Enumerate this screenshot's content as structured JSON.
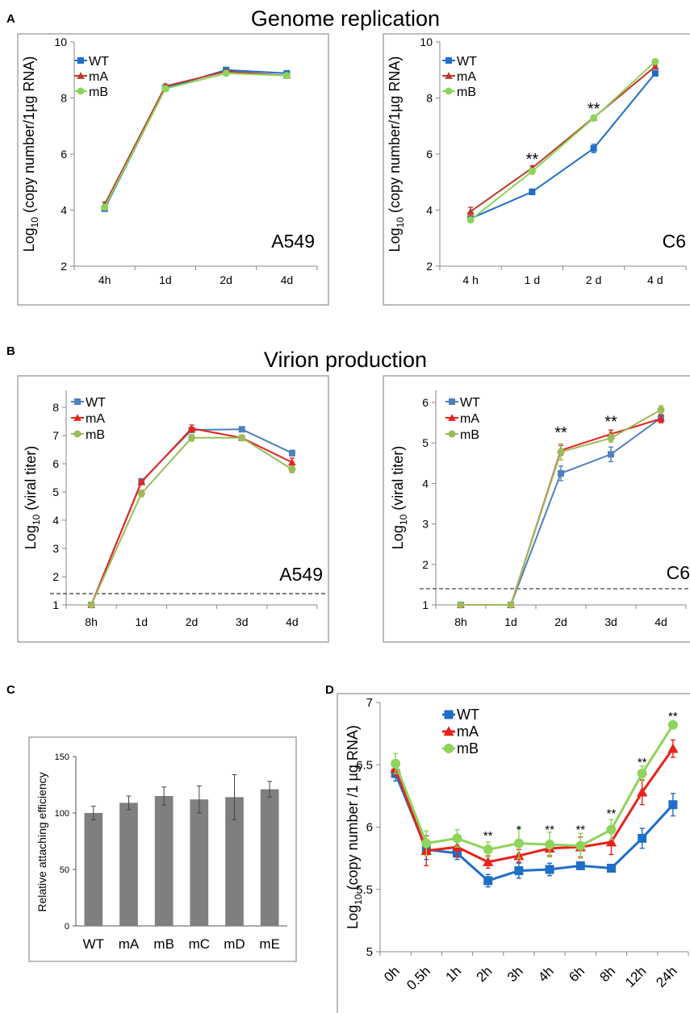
{
  "figure": {
    "panel_letters": [
      "A",
      "B",
      "C",
      "D"
    ],
    "section_titles": [
      "Genome replication",
      "Virion production"
    ]
  },
  "colors": {
    "WT": "#1f6ec8",
    "WT_B": "#4f81bd",
    "mA": "#e8221c",
    "mA_A": "#c0392b",
    "mB": "#8ed45a",
    "mB_B": "#9bbb59",
    "bar": "#7f7f7f",
    "frame": "#a6a6a6"
  },
  "chart_data": [
    {
      "id": "A1",
      "panel": "A",
      "type": "line",
      "ylabel_html": "Log<tspan baseline-shift='sub' font-size='13'>10</tspan> (copy number/1µg RNA)",
      "ylabel": "Log10 (copy number/1µg RNA)",
      "categories": [
        "4h",
        "1d",
        "2d",
        "4d"
      ],
      "ylim": [
        2,
        10
      ],
      "yticks": [
        2,
        4,
        6,
        8,
        10
      ],
      "annotation": "A549",
      "legend": [
        "WT",
        "mA",
        "mB"
      ],
      "series": [
        {
          "name": "WT",
          "marker": "square",
          "values": [
            4.05,
            8.35,
            9.0,
            8.88
          ],
          "err": [
            0.08,
            0.08,
            0.05,
            0.05
          ]
        },
        {
          "name": "mA",
          "marker": "triangle",
          "values": [
            4.2,
            8.42,
            8.95,
            8.8
          ],
          "err": [
            0.08,
            0.08,
            0.05,
            0.05
          ]
        },
        {
          "name": "mB",
          "marker": "circle",
          "values": [
            4.1,
            8.33,
            8.88,
            8.8
          ],
          "err": [
            0.08,
            0.08,
            0.05,
            0.05
          ]
        }
      ],
      "stars": []
    },
    {
      "id": "A2",
      "panel": "A",
      "type": "line",
      "ylabel": "Log10 (copy number/1µg RNA)",
      "categories": [
        "4 h",
        "1 d",
        "2 d",
        "4 d"
      ],
      "ylim": [
        2,
        10
      ],
      "yticks": [
        2,
        4,
        6,
        8,
        10
      ],
      "annotation": "C6",
      "legend": [
        "WT",
        "mA",
        "mB"
      ],
      "series": [
        {
          "name": "WT",
          "marker": "square",
          "values": [
            3.7,
            4.65,
            6.2,
            8.88
          ],
          "err": [
            0.1,
            0.1,
            0.15,
            0.08
          ]
        },
        {
          "name": "mA",
          "marker": "triangle",
          "values": [
            3.95,
            5.5,
            7.3,
            9.12
          ],
          "err": [
            0.15,
            0.08,
            0.05,
            0.05
          ]
        },
        {
          "name": "mB",
          "marker": "circle",
          "values": [
            3.65,
            5.38,
            7.28,
            9.3
          ],
          "err": [
            0.08,
            0.08,
            0.05,
            0.05
          ]
        }
      ],
      "stars": [
        {
          "category": "1 d",
          "text": "**",
          "y": 5.85
        },
        {
          "category": "2 d",
          "text": "**",
          "y": 7.65
        }
      ]
    },
    {
      "id": "B1",
      "panel": "B",
      "type": "line",
      "ylabel": "Log10 (viral titer)",
      "categories": [
        "8h",
        "1d",
        "2d",
        "3d",
        "4d"
      ],
      "ylim": [
        1,
        8.6
      ],
      "yticks": [
        1,
        2,
        3,
        4,
        5,
        6,
        7,
        8
      ],
      "annotation": "A549",
      "dashed_line": 1.4,
      "legend": [
        "WT",
        "mA",
        "mB"
      ],
      "series": [
        {
          "name": "WT",
          "marker": "square",
          "values": [
            1.0,
            5.38,
            7.2,
            7.22,
            6.38
          ],
          "err": [
            0,
            0.08,
            0.08,
            0.06,
            0.1
          ]
        },
        {
          "name": "mA",
          "marker": "triangle",
          "values": [
            1.0,
            5.35,
            7.25,
            6.92,
            6.05
          ],
          "err": [
            0,
            0.08,
            0.12,
            0.1,
            0.15
          ]
        },
        {
          "name": "mB",
          "marker": "circle",
          "values": [
            1.0,
            4.95,
            6.92,
            6.92,
            5.8
          ],
          "err": [
            0,
            0.12,
            0.12,
            0.1,
            0.12
          ]
        }
      ],
      "stars": []
    },
    {
      "id": "B2",
      "panel": "B",
      "type": "line",
      "ylabel": "Log10 (viral titer)",
      "categories": [
        "8h",
        "1d",
        "2d",
        "3d",
        "4d"
      ],
      "ylim": [
        1,
        6.3
      ],
      "yticks": [
        1,
        2,
        3,
        4,
        5,
        6
      ],
      "annotation": "C6",
      "dashed_line": 1.4,
      "legend": [
        "WT",
        "mA",
        "mB"
      ],
      "series": [
        {
          "name": "WT",
          "marker": "square",
          "values": [
            1.0,
            1.0,
            4.25,
            4.72,
            5.62
          ],
          "err": [
            0,
            0,
            0.18,
            0.18,
            0.1
          ]
        },
        {
          "name": "mA",
          "marker": "triangle",
          "values": [
            1.0,
            1.0,
            4.82,
            5.22,
            5.6
          ],
          "err": [
            0,
            0,
            0.12,
            0.1,
            0.1
          ]
        },
        {
          "name": "mB",
          "marker": "circle",
          "values": [
            1.0,
            1.0,
            4.78,
            5.12,
            5.82
          ],
          "err": [
            0,
            0,
            0.2,
            0.1,
            0.1
          ]
        }
      ],
      "stars": [
        {
          "category": "2d",
          "text": "**",
          "y": 5.28
        },
        {
          "category": "3d",
          "text": "**",
          "y": 5.55
        }
      ]
    },
    {
      "id": "C",
      "panel": "C",
      "type": "bar",
      "ylabel": "Relative attaching efficiency",
      "categories": [
        "WT",
        "mA",
        "mB",
        "mC",
        "mD",
        "mE"
      ],
      "values": [
        100,
        109,
        115,
        112,
        114,
        121
      ],
      "err": [
        6,
        6,
        8,
        12,
        20,
        7
      ],
      "ylim": [
        0,
        150
      ],
      "yticks": [
        0,
        50,
        100,
        150
      ]
    },
    {
      "id": "D",
      "panel": "D",
      "type": "line",
      "ylabel": "Log10 (copy number /1 µg RNA)",
      "categories": [
        "0h",
        "0.5h",
        "1h",
        "2h",
        "3h",
        "4h",
        "6h",
        "8h",
        "12h",
        "24h"
      ],
      "ylim": [
        5,
        7
      ],
      "yticks": [
        5,
        5.5,
        6,
        6.5,
        7
      ],
      "legend": [
        "WT",
        "mA",
        "mB"
      ],
      "series": [
        {
          "name": "WT",
          "marker": "square",
          "values": [
            6.43,
            5.82,
            5.79,
            5.57,
            5.65,
            5.66,
            5.69,
            5.67,
            5.91,
            6.18
          ],
          "err": [
            0.06,
            0.08,
            0.05,
            0.05,
            0.06,
            0.05,
            0.03,
            0.03,
            0.08,
            0.09
          ]
        },
        {
          "name": "mA",
          "marker": "triangle",
          "values": [
            6.47,
            5.81,
            5.84,
            5.72,
            5.77,
            5.83,
            5.84,
            5.88,
            6.28,
            6.63
          ],
          "err": [
            0.06,
            0.12,
            0.08,
            0.05,
            0.05,
            0.06,
            0.08,
            0.1,
            0.1,
            0.07
          ]
        },
        {
          "name": "mB",
          "marker": "circle",
          "values": [
            6.51,
            5.87,
            5.91,
            5.82,
            5.87,
            5.86,
            5.85,
            5.98,
            6.43,
            6.82
          ],
          "err": [
            0.08,
            0.1,
            0.07,
            0.06,
            0.12,
            0.1,
            0.1,
            0.08,
            0.06,
            0.03
          ]
        }
      ],
      "stars": [
        {
          "category": "2h",
          "text": "**",
          "y": 5.95
        },
        {
          "category": "3h",
          "text": "*",
          "y": 6.0
        },
        {
          "category": "4h",
          "text": "**",
          "y": 6.0
        },
        {
          "category": "6h",
          "text": "**",
          "y": 6.0
        },
        {
          "category": "8h",
          "text": "**",
          "y": 6.13
        },
        {
          "category": "12h",
          "text": "**",
          "y": 6.54
        },
        {
          "category": "24h",
          "text": "**",
          "y": 6.91
        }
      ]
    }
  ]
}
